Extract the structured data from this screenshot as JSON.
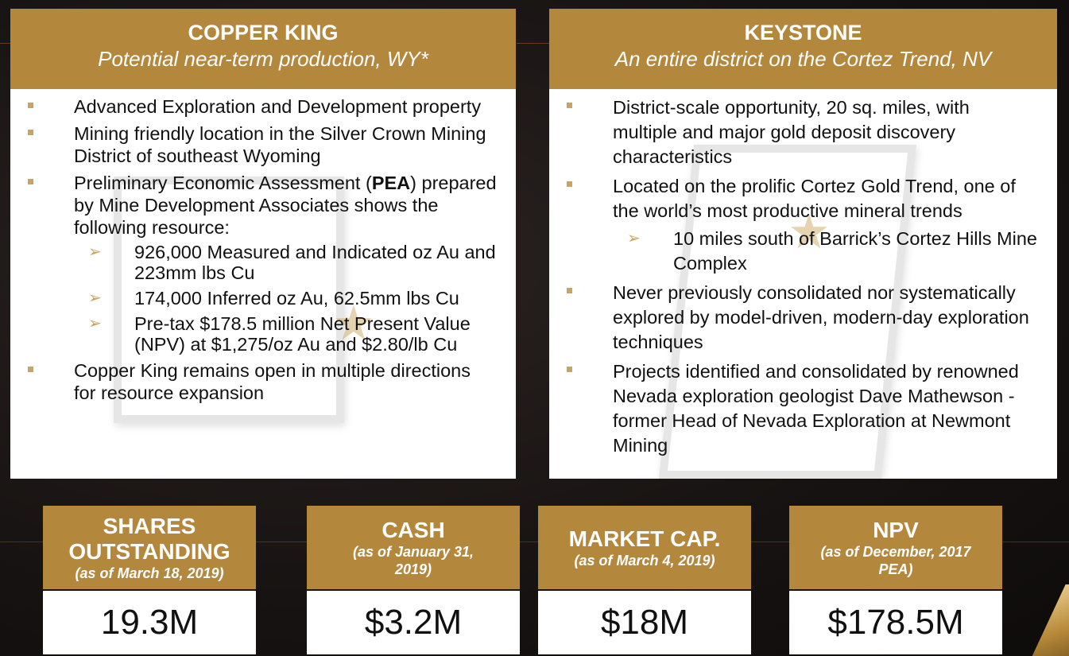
{
  "copper_king": {
    "title": "COPPER KING",
    "subtitle": "Potential near-term production, WY*",
    "bullets": [
      {
        "text": "Advanced Exploration and Development property"
      },
      {
        "text": "Mining friendly location in the Silver Crown Mining District of southeast Wyoming"
      },
      {
        "text_before": "Preliminary Economic Assessment (",
        "bold": "PEA",
        "text_after": ") prepared by Mine Development Associates shows the following resource:",
        "sub": [
          "926,000 Measured and Indicated oz Au and 223mm lbs Cu",
          "174,000 Inferred oz Au, 62.5mm lbs Cu",
          "Pre-tax $178.5 million Net Present Value (NPV) at $1,275/oz Au and $2.80/lb Cu"
        ]
      },
      {
        "text": "Copper King remains open in multiple directions for resource expansion"
      }
    ]
  },
  "keystone": {
    "title": "KEYSTONE",
    "subtitle": "An entire district on the Cortez Trend, NV",
    "bullets": [
      {
        "text": "District-scale opportunity, 20 sq. miles, with multiple and major gold deposit discovery characteristics"
      },
      {
        "text": "Located on the prolific Cortez Gold Trend, one of the world’s most productive mineral trends",
        "sub": [
          "10 miles south of Barrick’s Cortez Hills Mine Complex"
        ]
      },
      {
        "text": "Never previously consolidated nor systematically explored by model-driven, modern-day exploration techniques"
      },
      {
        "text": "Projects identified and consolidated by renowned Nevada exploration geologist Dave Mathewson - former Head of Nevada Exploration at Newmont Mining"
      }
    ]
  },
  "stats": [
    {
      "label": "SHARES OUTSTANDING",
      "note": "(as of March 18, 2019)",
      "value": "19.3M"
    },
    {
      "label": "CASH",
      "note": "(as of January 31, 2019)",
      "value": "$3.2M"
    },
    {
      "label": "MARKET CAP.",
      "note": "(as of March 4, 2019)",
      "value": "$18M"
    },
    {
      "label": "NPV",
      "note": "(as of December, 2017 PEA)",
      "value": "$178.5M"
    }
  ],
  "colors": {
    "gold": "#b3873c",
    "bullet": "#c8a464",
    "background": "#171312"
  },
  "icons": {
    "bullet": "square-bullet-icon",
    "sub_bullet": "arrow-bullet-icon",
    "map_marker": "star-icon"
  }
}
